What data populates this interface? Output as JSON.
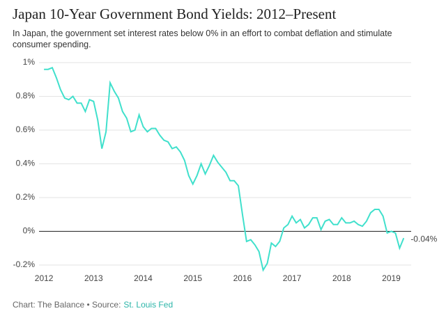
{
  "chart_data": {
    "type": "line",
    "title": "Japan 10-Year Government Bond Yields: 2012–Present",
    "subtitle": "In Japan, the government set interest rates below 0% in an effort to combat deflation and stimulate consumer spending.",
    "source_prefix": "Chart: The Balance • Source:",
    "source_link": "St. Louis Fed",
    "x": [
      2012,
      2012.083,
      2012.167,
      2012.25,
      2012.333,
      2012.417,
      2012.5,
      2012.583,
      2012.667,
      2012.75,
      2012.833,
      2012.917,
      2013,
      2013.083,
      2013.167,
      2013.25,
      2013.333,
      2013.417,
      2013.5,
      2013.583,
      2013.667,
      2013.75,
      2013.833,
      2013.917,
      2014,
      2014.083,
      2014.167,
      2014.25,
      2014.333,
      2014.417,
      2014.5,
      2014.583,
      2014.667,
      2014.75,
      2014.833,
      2014.917,
      2015,
      2015.083,
      2015.167,
      2015.25,
      2015.333,
      2015.417,
      2015.5,
      2015.583,
      2015.667,
      2015.75,
      2015.833,
      2015.917,
      2016,
      2016.083,
      2016.167,
      2016.25,
      2016.333,
      2016.417,
      2016.5,
      2016.583,
      2016.667,
      2016.75,
      2016.833,
      2016.917,
      2017,
      2017.083,
      2017.167,
      2017.25,
      2017.333,
      2017.417,
      2017.5,
      2017.583,
      2017.667,
      2017.75,
      2017.833,
      2017.917,
      2018,
      2018.083,
      2018.167,
      2018.25,
      2018.333,
      2018.417,
      2018.5,
      2018.583,
      2018.667,
      2018.75,
      2018.833,
      2018.917,
      2019,
      2019.083,
      2019.167,
      2019.25
    ],
    "series": [
      {
        "color": "#40e0cc",
        "values": [
          0.96,
          0.96,
          0.97,
          0.91,
          0.84,
          0.79,
          0.78,
          0.8,
          0.76,
          0.76,
          0.71,
          0.78,
          0.77,
          0.66,
          0.49,
          0.59,
          0.88,
          0.83,
          0.79,
          0.71,
          0.67,
          0.59,
          0.6,
          0.69,
          0.62,
          0.59,
          0.61,
          0.61,
          0.57,
          0.54,
          0.53,
          0.49,
          0.5,
          0.47,
          0.42,
          0.33,
          0.28,
          0.33,
          0.4,
          0.34,
          0.39,
          0.45,
          0.41,
          0.38,
          0.35,
          0.3,
          0.3,
          0.27,
          0.1,
          -0.06,
          -0.05,
          -0.08,
          -0.12,
          -0.23,
          -0.19,
          -0.07,
          -0.09,
          -0.06,
          0.02,
          0.04,
          0.09,
          0.05,
          0.07,
          0.02,
          0.04,
          0.08,
          0.08,
          0.01,
          0.06,
          0.07,
          0.04,
          0.04,
          0.08,
          0.05,
          0.05,
          0.06,
          0.04,
          0.03,
          0.06,
          0.11,
          0.13,
          0.13,
          0.09,
          -0.01,
          0.0,
          -0.01,
          -0.1,
          -0.04
        ],
        "value_labels": [
          null,
          null,
          null,
          null,
          null,
          null,
          null,
          null,
          null,
          null,
          null,
          null,
          null,
          null,
          null,
          null,
          null,
          null,
          null,
          null,
          null,
          null,
          null,
          null,
          null,
          null,
          null,
          null,
          null,
          null,
          null,
          null,
          null,
          null,
          null,
          null,
          null,
          null,
          null,
          null,
          null,
          null,
          null,
          null,
          null,
          null,
          null,
          null,
          null,
          null,
          null,
          null,
          null,
          null,
          null,
          null,
          null,
          null,
          null,
          null,
          null,
          null,
          null,
          null,
          null,
          null,
          null,
          null,
          null,
          null,
          null,
          null,
          null,
          null,
          null,
          null,
          null,
          null,
          null,
          null,
          null,
          null,
          null,
          null,
          null,
          null,
          null,
          "-0.04%"
        ]
      }
    ],
    "xlim": [
      2011.9,
      2019.4
    ],
    "xticks": [
      2012,
      2013,
      2014,
      2015,
      2016,
      2017,
      2018,
      2019
    ],
    "ylim": [
      -0.2,
      1
    ],
    "yticks": [
      {
        "value": -0.2,
        "label": "-0.2%"
      },
      {
        "value": 0,
        "label": "0%"
      },
      {
        "value": 0.2,
        "label": "0.2%"
      },
      {
        "value": 0.4,
        "label": "0.4%"
      },
      {
        "value": 0.6,
        "label": "0.6%"
      },
      {
        "value": 0.8,
        "label": "0.8%"
      },
      {
        "value": 1,
        "label": "1%"
      }
    ],
    "grid": true
  }
}
